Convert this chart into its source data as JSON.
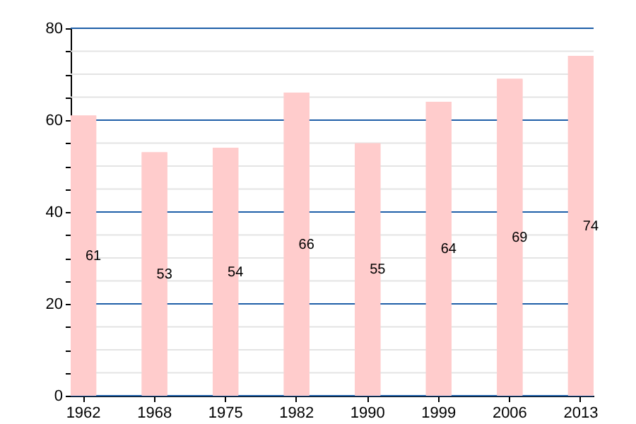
{
  "chart_data": {
    "type": "bar",
    "categories": [
      "1962",
      "1968",
      "1975",
      "1982",
      "1990",
      "1999",
      "2006",
      "2013"
    ],
    "values": [
      61,
      53,
      54,
      66,
      55,
      64,
      69,
      74
    ],
    "color": "#ffcccc",
    "data_labels": true,
    "grid": "y",
    "ylim": [
      0,
      80
    ],
    "yticks": [
      0,
      {
        "value": 5,
        "label": null
      },
      {
        "value": 10,
        "label": null
      },
      {
        "value": 15,
        "label": null
      },
      20,
      {
        "value": 25,
        "label": null
      },
      {
        "value": 30,
        "label": null
      },
      {
        "value": 35,
        "label": null
      },
      40,
      {
        "value": 45,
        "label": null
      },
      {
        "value": 50,
        "label": null
      },
      {
        "value": 55,
        "label": null
      },
      60,
      {
        "value": 65,
        "label": null
      },
      {
        "value": 70,
        "label": null
      },
      {
        "value": 75,
        "label": null
      },
      80
    ]
  }
}
